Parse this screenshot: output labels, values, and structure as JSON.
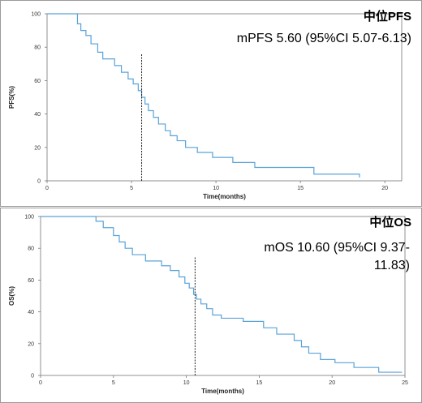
{
  "chart_data": [
    {
      "type": "line",
      "step": true,
      "annotation_title": "中位PFS",
      "annotation_text": "mPFS 5.60 (95%CI 5.07-6.13)",
      "xlabel": "Time(months)",
      "ylabel": "PFS(%)",
      "xlim": [
        0,
        21
      ],
      "ylim": [
        0,
        100
      ],
      "xticks": [
        "0",
        "5",
        "10",
        "15",
        "20"
      ],
      "yticks": [
        "0",
        "20",
        "40",
        "60",
        "80",
        "100"
      ],
      "median_x": 5.6,
      "line_color": "#5aa3d8",
      "series": [
        {
          "x": [
            0,
            1.5,
            1.8,
            2.0,
            2.3,
            2.6,
            3.0,
            3.3,
            4.0,
            4.4,
            4.8,
            5.1,
            5.4,
            5.6,
            5.8,
            6.0,
            6.3,
            6.6,
            7.0,
            7.3,
            7.7,
            8.2,
            8.9,
            9.8,
            11.0,
            12.3,
            15.8,
            18.5
          ],
          "y": [
            100,
            100,
            94,
            90,
            87,
            82,
            77,
            73,
            69,
            65,
            61,
            58,
            54,
            50,
            46,
            42,
            38,
            34,
            30,
            27,
            24,
            20,
            17,
            14,
            11,
            8,
            4,
            2
          ]
        }
      ]
    },
    {
      "type": "line",
      "step": true,
      "annotation_title": "中位OS",
      "annotation_text": "mOS 10.60 (95%CI 9.37-11.83)",
      "annotation_lines": [
        "mOS 10.60 (95%CI 9.37-",
        "11.83)"
      ],
      "xlabel": "Time(months)",
      "ylabel": "OS(%)",
      "xlim": [
        0,
        25
      ],
      "ylim": [
        0,
        100
      ],
      "xticks": [
        "0",
        "5",
        "10",
        "15",
        "20",
        "25"
      ],
      "yticks": [
        "0",
        "20",
        "40",
        "60",
        "80",
        "100"
      ],
      "median_x": 10.6,
      "line_color": "#5aa3d8",
      "series": [
        {
          "x": [
            0,
            3.5,
            3.8,
            4.3,
            5.0,
            5.4,
            5.8,
            6.3,
            7.2,
            8.3,
            8.9,
            9.5,
            9.9,
            10.2,
            10.5,
            10.7,
            11.0,
            11.4,
            11.8,
            12.4,
            13.9,
            15.3,
            16.2,
            17.4,
            17.9,
            18.4,
            19.2,
            20.2,
            21.5,
            23.2,
            24.8
          ],
          "y": [
            100,
            100,
            97,
            93,
            88,
            84,
            80,
            76,
            72,
            69,
            66,
            62,
            58,
            55,
            51,
            48,
            45,
            42,
            38,
            36,
            34,
            30,
            26,
            22,
            18,
            14,
            10,
            8,
            5,
            2,
            2
          ]
        }
      ]
    }
  ]
}
